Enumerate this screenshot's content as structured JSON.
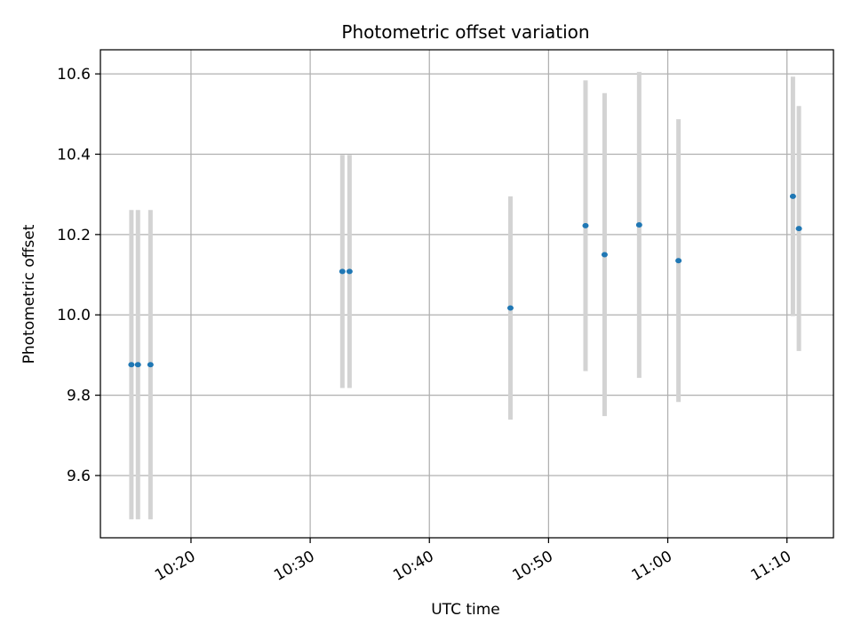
{
  "chart_data": {
    "type": "scatter",
    "title": "Photometric offset variation",
    "xlabel": "UTC time",
    "ylabel": "Photometric offset",
    "x_axis_type": "time",
    "xlim": [
      "10:12:24",
      "11:13:54"
    ],
    "ylim": [
      9.445,
      10.66
    ],
    "grid": true,
    "x_ticks": [
      "10:20",
      "10:30",
      "10:40",
      "10:50",
      "11:00",
      "11:10"
    ],
    "y_ticks": [
      9.6,
      9.8,
      10.0,
      10.2,
      10.4,
      10.6
    ],
    "y_tick_labels": [
      "9.6",
      "9.8",
      "10.0",
      "10.2",
      "10.4",
      "10.6"
    ],
    "colors": {
      "marker": "#1f77b4",
      "errorbar": "#d3d3d3",
      "grid": "#b0b0b0"
    },
    "points": [
      {
        "x": "10:15:00",
        "y": 9.876,
        "yerr": 0.385
      },
      {
        "x": "10:15:33",
        "y": 9.876,
        "yerr": 0.385
      },
      {
        "x": "10:16:36",
        "y": 9.876,
        "yerr": 0.385
      },
      {
        "x": "10:32:42",
        "y": 10.108,
        "yerr": 0.29
      },
      {
        "x": "10:33:18",
        "y": 10.108,
        "yerr": 0.29
      },
      {
        "x": "10:46:48",
        "y": 10.017,
        "yerr": 0.278
      },
      {
        "x": "10:53:06",
        "y": 10.222,
        "yerr": 0.362
      },
      {
        "x": "10:54:42",
        "y": 10.15,
        "yerr": 0.402
      },
      {
        "x": "10:57:36",
        "y": 10.224,
        "yerr": 0.381
      },
      {
        "x": "11:00:54",
        "y": 10.135,
        "yerr": 0.352
      },
      {
        "x": "11:10:30",
        "y": 10.295,
        "yerr": 0.298
      },
      {
        "x": "11:11:00",
        "y": 10.215,
        "yerr": 0.305
      }
    ]
  }
}
